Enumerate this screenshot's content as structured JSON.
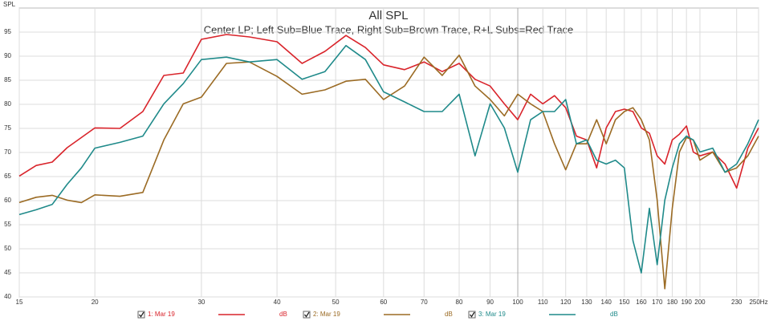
{
  "chart_data": {
    "type": "line",
    "title": "All SPL",
    "subtitle": "Center LP; Left Sub=Blue Trace, Right Sub=Brown Trace, R+L Subs=Red Trace",
    "ylabel": "SPL",
    "xscale": "log",
    "grid": true,
    "legend_unit": "dB",
    "x": [
      15,
      16,
      17,
      18,
      19,
      20,
      22,
      24,
      26,
      28,
      30,
      33,
      36,
      40,
      44,
      48,
      52,
      56,
      60,
      65,
      70,
      75,
      80,
      85,
      90,
      95,
      100,
      105,
      110,
      115,
      120,
      125,
      130,
      135,
      140,
      145,
      150,
      155,
      160,
      165,
      170,
      175,
      180,
      185,
      190,
      195,
      200,
      210,
      220,
      230,
      240,
      250
    ],
    "series": [
      {
        "name": "1: Mar 19",
        "color": "#d9242b",
        "values": [
          65.1,
          67.3,
          68,
          71,
          73.1,
          75.1,
          75,
          78.5,
          86,
          86.5,
          93.5,
          94.5,
          94,
          93,
          88.5,
          91,
          94.3,
          91.8,
          88.2,
          87.2,
          88.8,
          86.8,
          88.5,
          85.2,
          83.8,
          80.1,
          76.8,
          82.1,
          80.1,
          81.8,
          79.3,
          73.4,
          72.6,
          66.8,
          75.1,
          78.5,
          79,
          78.5,
          75.1,
          74,
          69.3,
          67.6,
          72.6,
          73.8,
          75.5,
          70.1,
          69.3,
          70.1,
          67.6,
          62.6,
          70.9,
          75.1
        ]
      },
      {
        "name": "2: Mar 19",
        "color": "#9b6b24",
        "values": [
          59.6,
          60.7,
          61.1,
          60.1,
          59.6,
          61.2,
          60.9,
          61.7,
          72.6,
          80.1,
          81.5,
          88.5,
          88.8,
          85.8,
          82.1,
          83,
          84.8,
          85.2,
          81,
          83.8,
          89.8,
          86,
          90.2,
          83.8,
          81,
          77.6,
          82.1,
          80.1,
          78.5,
          71.8,
          66.4,
          71.8,
          71.8,
          76.8,
          71.8,
          76.8,
          78.5,
          79.3,
          76.8,
          72.6,
          60.1,
          41.7,
          58.4,
          70.1,
          73.1,
          72.6,
          68.4,
          70.1,
          65.9,
          66.8,
          69.3,
          73.4
        ]
      },
      {
        "name": "3: Mar 19",
        "color": "#1f8a8a",
        "values": [
          57.1,
          58.1,
          59.2,
          63.4,
          66.8,
          70.9,
          72.1,
          73.4,
          80.1,
          84.3,
          89.3,
          89.8,
          88.8,
          89.3,
          85.2,
          86.8,
          92.2,
          89.3,
          82.6,
          80.5,
          78.5,
          78.5,
          82.1,
          69.3,
          80.1,
          75.1,
          65.9,
          76.8,
          78.5,
          78.5,
          81,
          71.8,
          72.6,
          68.4,
          67.6,
          68.4,
          66.8,
          51.7,
          45,
          58.4,
          46.7,
          60.1,
          66.8,
          71.8,
          73.4,
          72.6,
          70.1,
          70.9,
          65.9,
          67.6,
          71.8,
          76.8
        ]
      }
    ],
    "xlim": [
      15,
      250
    ],
    "ylim": [
      40,
      100
    ],
    "xticks": [
      15,
      20,
      30,
      40,
      50,
      60,
      70,
      80,
      90,
      100,
      110,
      120,
      130,
      140,
      150,
      160,
      170,
      180,
      190,
      200,
      230,
      {
        "value": 250,
        "label": "250Hz"
      }
    ],
    "yticks": [
      40,
      45,
      50,
      55,
      60,
      65,
      70,
      75,
      80,
      85,
      90,
      95
    ]
  }
}
